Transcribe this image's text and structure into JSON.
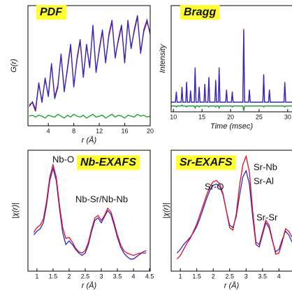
{
  "chart_data": [
    {
      "type": "line",
      "title": "PDF",
      "xlabel": "r (Å)",
      "ylabel": "G(r)",
      "x": [
        1,
        1.5,
        2,
        2.5,
        3,
        3.5,
        4,
        4.5,
        5,
        5.5,
        6,
        6.5,
        7,
        7.5,
        8,
        8.5,
        9,
        9.5,
        10,
        10.5,
        11,
        11.5,
        12,
        12.5,
        13,
        13.5,
        14,
        14.5,
        15,
        15.5,
        16,
        16.5,
        17,
        17.5,
        18,
        18.5,
        19,
        19.5,
        20
      ],
      "series": [
        {
          "color": "#d01010",
          "values": [
            0.2,
            0.4,
            -0.5,
            2.3,
            0.6,
            2.8,
            1.2,
            4.3,
            1.0,
            2.2,
            5.3,
            1.7,
            3.8,
            6.3,
            2.2,
            4.8,
            6.8,
            3.2,
            6.3,
            4.2,
            8.3,
            3.7,
            5.8,
            7.8,
            4.7,
            7.3,
            8.8,
            5.2,
            6.8,
            8.3,
            4.7,
            8.8,
            6.2,
            7.8,
            9.3,
            5.7,
            7.8,
            8.8,
            7.7
          ]
        },
        {
          "color": "#2a2ad0",
          "values": [
            0.0,
            0.5,
            -0.3,
            2.5,
            0.4,
            3.0,
            1.0,
            4.5,
            0.8,
            2.0,
            5.5,
            1.5,
            4.0,
            6.5,
            2.0,
            5.0,
            7.0,
            3.0,
            6.5,
            4.0,
            8.5,
            3.5,
            6.0,
            8.0,
            4.5,
            7.5,
            9.0,
            5.0,
            7.0,
            8.5,
            4.5,
            9.0,
            6.0,
            8.0,
            9.5,
            5.5,
            8.0,
            9.0,
            7.5
          ]
        },
        {
          "color": "#119a2a",
          "values": [
            -1.0,
            -0.9,
            -1.1,
            -0.9,
            -1.0,
            -1.2,
            -0.9,
            -1.0,
            -1.1,
            -0.8,
            -1.0,
            -1.2,
            -0.9,
            -1.1,
            -0.8,
            -1.0,
            -1.1,
            -0.9,
            -1.2,
            -1.0,
            -0.8,
            -1.1,
            -1.0,
            -0.9,
            -1.2,
            -1.0,
            -0.8,
            -1.1,
            -0.9,
            -1.0,
            -1.2,
            -0.9,
            -1.0,
            -1.1,
            -0.8,
            -1.0,
            -0.9,
            -1.1,
            -1.0
          ]
        }
      ],
      "xlim": [
        0.8,
        20
      ],
      "ylim": [
        -2,
        10.5
      ],
      "xticks": [
        4,
        8,
        12,
        16,
        20
      ]
    },
    {
      "type": "line",
      "title": "Bragg",
      "xlabel": "Time (msec)",
      "ylabel": "Intensity",
      "x": [
        9.6,
        10.35,
        10.5,
        10.65,
        11.35,
        11.5,
        11.65,
        12.15,
        12.3,
        12.45,
        12.85,
        13.0,
        13.15,
        13.65,
        13.8,
        13.95,
        14.35,
        14.5,
        14.65,
        15.35,
        15.5,
        15.65,
        16.05,
        16.2,
        16.35,
        17.25,
        17.4,
        17.55,
        17.85,
        18.0,
        18.15,
        19.15,
        19.3,
        19.45,
        20.15,
        20.3,
        20.45,
        22.15,
        22.3,
        22.45,
        23.15,
        23.3,
        23.45,
        25.65,
        25.8,
        25.95,
        26.65,
        26.8,
        26.95,
        29.35,
        29.5,
        29.65,
        31
      ],
      "series": [
        {
          "color": "#d01010",
          "values": [
            0,
            0,
            0.11,
            0,
            0,
            0.16,
            0,
            0,
            0.21,
            0,
            0,
            0.12,
            0,
            0,
            0.36,
            0,
            0,
            0.16,
            0,
            0,
            0.19,
            0,
            0,
            0.26,
            0,
            0,
            0.23,
            0,
            0,
            0.36,
            0,
            0,
            0.13,
            0,
            0,
            0.11,
            0,
            0,
            0.76,
            0,
            0,
            0.13,
            0,
            0,
            0.29,
            0,
            0,
            0.13,
            0,
            0,
            0.21,
            0,
            0
          ]
        },
        {
          "color": "#2a2ad0",
          "values": [
            0,
            0,
            0.1,
            0,
            0,
            0.15,
            0,
            0,
            0.2,
            0,
            0,
            0.12,
            0,
            0,
            0.35,
            0,
            0,
            0.15,
            0,
            0,
            0.18,
            0,
            0,
            0.25,
            0,
            0,
            0.22,
            0,
            0,
            0.35,
            0,
            0,
            0.12,
            0,
            0,
            0.1,
            0,
            0,
            0.74,
            0,
            0,
            0.12,
            0,
            0,
            0.28,
            0,
            0,
            0.12,
            0,
            0,
            0.2,
            0,
            0
          ]
        },
        {
          "color": "#119a2a",
          "values": [
            -0.04,
            -0.04,
            -0.05,
            -0.04,
            -0.04,
            -0.03,
            -0.04,
            -0.04,
            -0.05,
            -0.04,
            -0.04,
            -0.04,
            -0.04,
            -0.04,
            -0.06,
            -0.04,
            -0.04,
            -0.05,
            -0.04,
            -0.04,
            -0.04,
            -0.04,
            -0.04,
            -0.05,
            -0.04,
            -0.04,
            -0.05,
            -0.04,
            -0.04,
            -0.06,
            -0.04,
            -0.04,
            -0.04,
            -0.04,
            -0.04,
            -0.05,
            -0.04,
            -0.04,
            -0.09,
            -0.04,
            -0.04,
            -0.04,
            -0.04,
            -0.04,
            -0.05,
            -0.04,
            -0.04,
            -0.04,
            -0.04,
            -0.04,
            -0.05,
            -0.04,
            -0.04
          ]
        }
      ],
      "xlim": [
        9.6,
        31
      ],
      "ylim": [
        -0.1,
        1
      ],
      "xticks": [
        10,
        15,
        20,
        25,
        30
      ]
    },
    {
      "type": "line",
      "title": "Nb-EXAFS",
      "xlabel": "r (Å)",
      "ylabel": "|χ(r)|",
      "annotations": [
        "Nb-O",
        "Nb-Sr/Nb-Nb"
      ],
      "x": [
        0.9,
        1.0,
        1.1,
        1.2,
        1.3,
        1.4,
        1.5,
        1.6,
        1.7,
        1.8,
        1.9,
        2.0,
        2.1,
        2.2,
        2.3,
        2.4,
        2.5,
        2.6,
        2.7,
        2.8,
        2.9,
        3.0,
        3.1,
        3.2,
        3.3,
        3.4,
        3.5,
        3.6,
        3.7,
        3.8,
        3.9,
        4.0,
        4.1,
        4.2,
        4.3,
        4.4
      ],
      "series": [
        {
          "color": "#2a2ad0",
          "values": [
            0.3,
            0.33,
            0.35,
            0.4,
            0.55,
            0.75,
            0.85,
            0.75,
            0.52,
            0.32,
            0.22,
            0.25,
            0.22,
            0.18,
            0.15,
            0.13,
            0.15,
            0.22,
            0.33,
            0.42,
            0.44,
            0.4,
            0.45,
            0.5,
            0.47,
            0.38,
            0.28,
            0.2,
            0.15,
            0.12,
            0.1,
            0.1,
            0.12,
            0.14,
            0.16,
            0.17
          ]
        },
        {
          "color": "#e01020",
          "values": [
            0.32,
            0.36,
            0.38,
            0.43,
            0.58,
            0.78,
            0.88,
            0.78,
            0.55,
            0.36,
            0.27,
            0.28,
            0.24,
            0.19,
            0.16,
            0.15,
            0.17,
            0.24,
            0.35,
            0.44,
            0.46,
            0.42,
            0.46,
            0.52,
            0.49,
            0.4,
            0.3,
            0.22,
            0.17,
            0.15,
            0.14,
            0.13,
            0.14,
            0.15,
            0.15,
            0.15
          ]
        }
      ],
      "xlim": [
        0.72,
        4.52
      ],
      "ylim": [
        0,
        1
      ],
      "xticks": [
        1,
        1.5,
        2,
        2.5,
        3,
        3.5,
        4,
        4.5
      ]
    },
    {
      "type": "line",
      "title": "Sr-EXAFS",
      "xlabel": "r (Å)",
      "ylabel": "|χ(r)|",
      "annotations": [
        "Sr-O",
        "Sr-Nb",
        "Sr-Al",
        "Sr-Sr"
      ],
      "x": [
        0.9,
        1.0,
        1.1,
        1.2,
        1.3,
        1.4,
        1.5,
        1.6,
        1.7,
        1.8,
        1.9,
        2.0,
        2.1,
        2.2,
        2.3,
        2.4,
        2.5,
        2.6,
        2.7,
        2.8,
        2.9,
        3.0,
        3.1,
        3.2,
        3.3,
        3.4,
        3.5,
        3.6,
        3.7,
        3.8,
        3.9,
        4.0,
        4.1,
        4.2,
        4.3,
        4.4
      ],
      "series": [
        {
          "color": "#2a2ad0",
          "values": [
            0.15,
            0.18,
            0.22,
            0.25,
            0.28,
            0.32,
            0.37,
            0.44,
            0.52,
            0.6,
            0.67,
            0.71,
            0.72,
            0.7,
            0.63,
            0.5,
            0.38,
            0.36,
            0.45,
            0.62,
            0.78,
            0.83,
            0.72,
            0.45,
            0.22,
            0.2,
            0.3,
            0.4,
            0.36,
            0.25,
            0.16,
            0.18,
            0.26,
            0.33,
            0.3,
            0.24
          ]
        },
        {
          "color": "#e01020",
          "values": [
            0.1,
            0.13,
            0.18,
            0.23,
            0.27,
            0.33,
            0.39,
            0.47,
            0.55,
            0.63,
            0.7,
            0.74,
            0.75,
            0.72,
            0.64,
            0.5,
            0.36,
            0.34,
            0.47,
            0.7,
            0.88,
            0.95,
            0.82,
            0.5,
            0.24,
            0.22,
            0.32,
            0.42,
            0.38,
            0.26,
            0.14,
            0.15,
            0.24,
            0.35,
            0.33,
            0.28
          ]
        }
      ],
      "xlim": [
        0.72,
        4.44
      ],
      "ylim": [
        0,
        1
      ],
      "xticks": [
        1,
        1.5,
        2,
        2.5,
        3,
        3.5,
        4
      ]
    }
  ]
}
